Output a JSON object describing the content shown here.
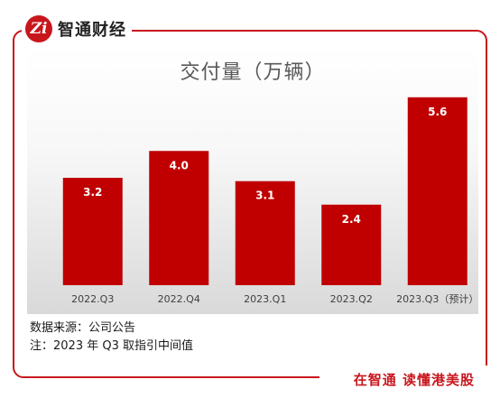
{
  "brand": {
    "logo_glyph": "Zi",
    "name": "智通财经"
  },
  "slogan": "在智通  读懂港美股",
  "notes": {
    "source": "数据来源：公司公告",
    "footnote": "注：2023 年 Q3 取指引中间值"
  },
  "colors": {
    "accent": "#c8161d",
    "bar": "#c00000",
    "title": "#595959"
  },
  "chart_data": {
    "type": "bar",
    "title": "交付量（万辆）",
    "categories": [
      "2022.Q3",
      "2022.Q4",
      "2023.Q1",
      "2023.Q2",
      "2023.Q3（预计）"
    ],
    "values": [
      3.2,
      4.0,
      3.1,
      2.4,
      5.6
    ],
    "value_labels": [
      "3.2",
      "4.0",
      "3.1",
      "2.4",
      "5.6"
    ],
    "ylim": [
      0,
      7.1
    ],
    "grid": false,
    "legend": "none"
  }
}
